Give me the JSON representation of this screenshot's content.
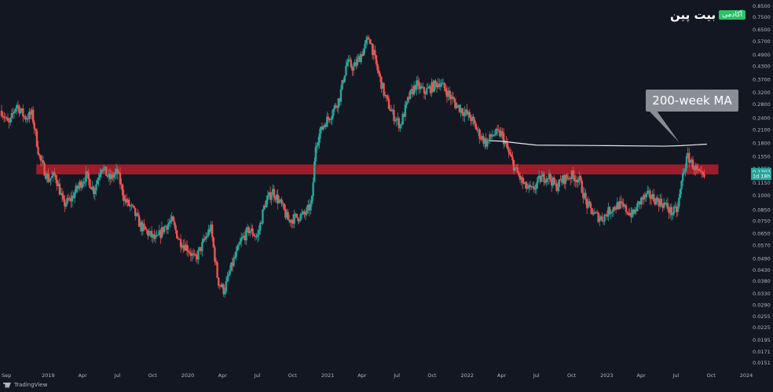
{
  "logo": {
    "word": "بیت پین",
    "badge": "آکادمی"
  },
  "footer": {
    "brand": "TradingView"
  },
  "chart_data": {
    "type": "candlestick",
    "scale": "log",
    "ylim": [
      0.014,
      0.86
    ],
    "xlim": [
      "2018-09-01",
      "2024-01-01"
    ],
    "y_ticks": [
      "0.8500",
      "0.7500",
      "0.6500",
      "0.5700",
      "0.4900",
      "0.4300",
      "0.3700",
      "0.3200",
      "0.2800",
      "0.2400",
      "0.2100",
      "0.1800",
      "0.1550",
      "0.1350",
      "0.1150",
      "0.1000",
      "0.0850",
      "0.0750",
      "0.0650",
      "0.0570",
      "0.0490",
      "0.0430",
      "0.0380",
      "0.0330",
      "0.0290",
      "0.0255",
      "0.0225",
      "0.0195",
      "0.0171",
      "0.0151"
    ],
    "x_ticks": [
      {
        "date": "2018-09-01",
        "label": "Sep"
      },
      {
        "date": "2019-01-01",
        "label": "2019"
      },
      {
        "date": "2019-04-01",
        "label": "Apr"
      },
      {
        "date": "2019-07-01",
        "label": "Jul"
      },
      {
        "date": "2019-10-01",
        "label": "Oct"
      },
      {
        "date": "2020-01-01",
        "label": "2020"
      },
      {
        "date": "2020-04-01",
        "label": "Apr"
      },
      {
        "date": "2020-07-01",
        "label": "Jul"
      },
      {
        "date": "2020-10-01",
        "label": "Oct"
      },
      {
        "date": "2021-01-01",
        "label": "2021"
      },
      {
        "date": "2021-04-01",
        "label": "Apr"
      },
      {
        "date": "2021-07-01",
        "label": "Jul"
      },
      {
        "date": "2021-10-01",
        "label": "Oct"
      },
      {
        "date": "2022-01-01",
        "label": "2022"
      },
      {
        "date": "2022-04-01",
        "label": "Apr"
      },
      {
        "date": "2022-07-01",
        "label": "Jul"
      },
      {
        "date": "2022-10-01",
        "label": "Oct"
      },
      {
        "date": "2023-01-01",
        "label": "2023"
      },
      {
        "date": "2023-04-01",
        "label": "Apr"
      },
      {
        "date": "2023-07-01",
        "label": "Jul"
      },
      {
        "date": "2023-10-01",
        "label": "Oct"
      },
      {
        "date": "2024-01-01",
        "label": "2024"
      }
    ],
    "series_anchors": [
      [
        "2018-09-01",
        0.26
      ],
      [
        "2018-09-20",
        0.22
      ],
      [
        "2018-10-10",
        0.28
      ],
      [
        "2018-11-01",
        0.24
      ],
      [
        "2018-11-20",
        0.25
      ],
      [
        "2018-12-10",
        0.15
      ],
      [
        "2019-01-01",
        0.12
      ],
      [
        "2019-01-20",
        0.125
      ],
      [
        "2019-02-10",
        0.09
      ],
      [
        "2019-03-01",
        0.095
      ],
      [
        "2019-03-20",
        0.11
      ],
      [
        "2019-04-10",
        0.125
      ],
      [
        "2019-05-01",
        0.105
      ],
      [
        "2019-05-20",
        0.14
      ],
      [
        "2019-06-10",
        0.12
      ],
      [
        "2019-07-01",
        0.13
      ],
      [
        "2019-07-20",
        0.095
      ],
      [
        "2019-08-10",
        0.085
      ],
      [
        "2019-09-01",
        0.07
      ],
      [
        "2019-09-20",
        0.065
      ],
      [
        "2019-10-10",
        0.06
      ],
      [
        "2019-11-01",
        0.07
      ],
      [
        "2019-11-20",
        0.075
      ],
      [
        "2019-12-10",
        0.06
      ],
      [
        "2020-01-01",
        0.055
      ],
      [
        "2020-01-20",
        0.048
      ],
      [
        "2020-02-10",
        0.058
      ],
      [
        "2020-03-01",
        0.07
      ],
      [
        "2020-03-20",
        0.038
      ],
      [
        "2020-04-05",
        0.034
      ],
      [
        "2020-04-25",
        0.045
      ],
      [
        "2020-05-20",
        0.06
      ],
      [
        "2020-06-10",
        0.068
      ],
      [
        "2020-07-01",
        0.062
      ],
      [
        "2020-07-20",
        0.09
      ],
      [
        "2020-08-10",
        0.105
      ],
      [
        "2020-09-01",
        0.09
      ],
      [
        "2020-09-20",
        0.075
      ],
      [
        "2020-10-10",
        0.078
      ],
      [
        "2020-11-01",
        0.08
      ],
      [
        "2020-11-20",
        0.09
      ],
      [
        "2020-12-01",
        0.18
      ],
      [
        "2020-12-20",
        0.22
      ],
      [
        "2021-01-10",
        0.25
      ],
      [
        "2021-02-01",
        0.3
      ],
      [
        "2021-02-20",
        0.45
      ],
      [
        "2021-03-10",
        0.42
      ],
      [
        "2021-04-01",
        0.5
      ],
      [
        "2021-04-20",
        0.6
      ],
      [
        "2021-05-10",
        0.42
      ],
      [
        "2021-06-01",
        0.3
      ],
      [
        "2021-06-20",
        0.25
      ],
      [
        "2021-07-10",
        0.22
      ],
      [
        "2021-08-01",
        0.3
      ],
      [
        "2021-08-20",
        0.35
      ],
      [
        "2021-09-10",
        0.32
      ],
      [
        "2021-10-01",
        0.34
      ],
      [
        "2021-10-20",
        0.36
      ],
      [
        "2021-11-10",
        0.32
      ],
      [
        "2021-12-01",
        0.28
      ],
      [
        "2021-12-20",
        0.26
      ],
      [
        "2022-01-10",
        0.24
      ],
      [
        "2022-02-01",
        0.2
      ],
      [
        "2022-02-20",
        0.18
      ],
      [
        "2022-03-10",
        0.2
      ],
      [
        "2022-04-01",
        0.2
      ],
      [
        "2022-04-20",
        0.16
      ],
      [
        "2022-05-10",
        0.13
      ],
      [
        "2022-06-01",
        0.11
      ],
      [
        "2022-06-20",
        0.105
      ],
      [
        "2022-07-10",
        0.12
      ],
      [
        "2022-08-01",
        0.125
      ],
      [
        "2022-08-20",
        0.11
      ],
      [
        "2022-09-10",
        0.12
      ],
      [
        "2022-10-01",
        0.125
      ],
      [
        "2022-10-20",
        0.12
      ],
      [
        "2022-11-10",
        0.09
      ],
      [
        "2022-12-01",
        0.08
      ],
      [
        "2022-12-20",
        0.077
      ],
      [
        "2023-01-10",
        0.085
      ],
      [
        "2023-02-01",
        0.09
      ],
      [
        "2023-02-20",
        0.085
      ],
      [
        "2023-03-10",
        0.08
      ],
      [
        "2023-04-01",
        0.095
      ],
      [
        "2023-04-20",
        0.1
      ],
      [
        "2023-05-10",
        0.095
      ],
      [
        "2023-06-01",
        0.09
      ],
      [
        "2023-06-20",
        0.082
      ],
      [
        "2023-07-05",
        0.085
      ],
      [
        "2023-07-20",
        0.13
      ],
      [
        "2023-08-01",
        0.155
      ],
      [
        "2023-08-15",
        0.14
      ],
      [
        "2023-09-01",
        0.125
      ],
      [
        "2023-09-15",
        0.12
      ]
    ],
    "annotations": [
      {
        "type": "zone",
        "from": "2018-12-01",
        "to": "2023-10-20",
        "y_low": 0.1265,
        "y_high": 0.1415,
        "color": "#b71c2c"
      },
      {
        "type": "line",
        "name": "200-week MA",
        "color": "#e8e8e8",
        "points": [
          [
            "2022-03-01",
            0.185
          ],
          [
            "2022-04-01",
            0.184
          ],
          [
            "2022-05-15",
            0.18
          ],
          [
            "2022-07-01",
            0.176
          ],
          [
            "2023-01-01",
            0.175
          ],
          [
            "2023-06-01",
            0.174
          ],
          [
            "2023-07-15",
            0.175
          ],
          [
            "2023-09-20",
            0.178
          ]
        ]
      }
    ],
    "label_callout": {
      "text": "200-week MA",
      "anchor_date": "2023-07-10",
      "anchor_value": 0.178
    },
    "price_tags": [
      {
        "text": "0.1302",
        "value": 0.1302,
        "color": "#26a69a"
      },
      {
        "text": "1d 18h",
        "value": 0.124,
        "color": "#26a69a"
      }
    ],
    "colors": {
      "up": "#26a69a",
      "down": "#ef5350",
      "background": "#131722",
      "axis_text": "#b2b5be"
    }
  }
}
